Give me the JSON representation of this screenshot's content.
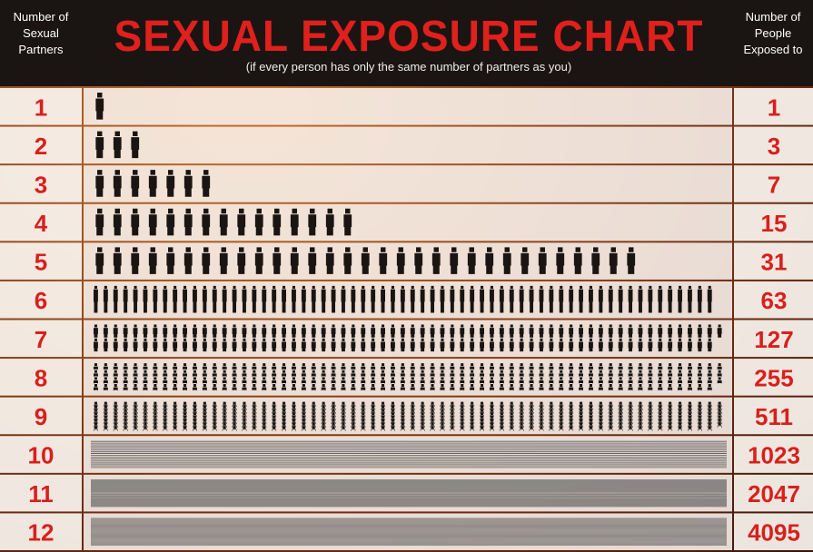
{
  "header": {
    "left": "Number of Sexual Partners",
    "title": "SEXUAL EXPOSURE CHART",
    "subtitle": "(if every person has only the same number of partners as you)",
    "right": "Number of People Exposed to"
  },
  "table": {
    "rows": [
      {
        "partners": 1,
        "exposed": 1
      },
      {
        "partners": 2,
        "exposed": 3
      },
      {
        "partners": 3,
        "exposed": 7
      },
      {
        "partners": 4,
        "exposed": 15
      },
      {
        "partners": 5,
        "exposed": 31
      },
      {
        "partners": 6,
        "exposed": 63
      },
      {
        "partners": 7,
        "exposed": 127
      },
      {
        "partners": 8,
        "exposed": 255
      },
      {
        "partners": 9,
        "exposed": 511
      },
      {
        "partners": 10,
        "exposed": 1023
      },
      {
        "partners": 11,
        "exposed": 2047
      },
      {
        "partners": 12,
        "exposed": 4095
      }
    ]
  }
}
